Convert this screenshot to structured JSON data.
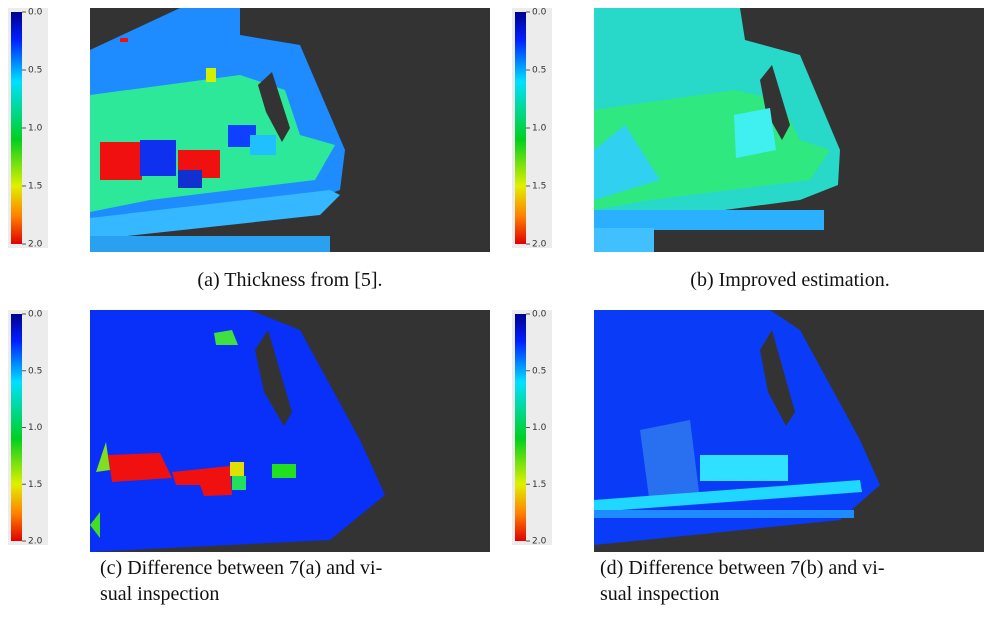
{
  "panels": [
    {
      "caption": [
        "(a) Thickness from [5]."
      ],
      "colorbar": {
        "ticks": [
          {
            "value": 0,
            "label": "0.0"
          },
          {
            "value": 0.5,
            "label": "0.5"
          },
          {
            "value": 1,
            "label": "1.0"
          },
          {
            "value": 1.5,
            "label": "1.5"
          },
          {
            "value": 2,
            "label": "2.0"
          }
        ]
      }
    },
    {
      "caption": [
        "(b) Improved estimation."
      ],
      "colorbar": {
        "ticks": [
          {
            "value": 0,
            "label": "0.0"
          },
          {
            "value": 0.5,
            "label": "0.5"
          },
          {
            "value": 1,
            "label": "1.0"
          },
          {
            "value": 1.5,
            "label": "1.5"
          },
          {
            "value": 2,
            "label": "2.0"
          }
        ]
      }
    },
    {
      "caption": [
        "(c) Difference between 7(a) and vi-",
        "sual inspection"
      ],
      "colorbar": {
        "ticks": [
          {
            "value": 0,
            "label": "0.0"
          },
          {
            "value": 0.5,
            "label": "0.5"
          },
          {
            "value": 1,
            "label": "1.0"
          },
          {
            "value": 1.5,
            "label": "1.5"
          },
          {
            "value": 2,
            "label": "2.0"
          }
        ]
      }
    },
    {
      "caption": [
        "(d) Difference between 7(b) and vi-",
        "sual inspection"
      ],
      "colorbar": {
        "ticks": [
          {
            "value": 0,
            "label": "0.0"
          },
          {
            "value": 0.5,
            "label": "0.5"
          },
          {
            "value": 1,
            "label": "1.0"
          },
          {
            "value": 1.5,
            "label": "1.5"
          },
          {
            "value": 2,
            "label": "2.0"
          }
        ]
      }
    }
  ]
}
